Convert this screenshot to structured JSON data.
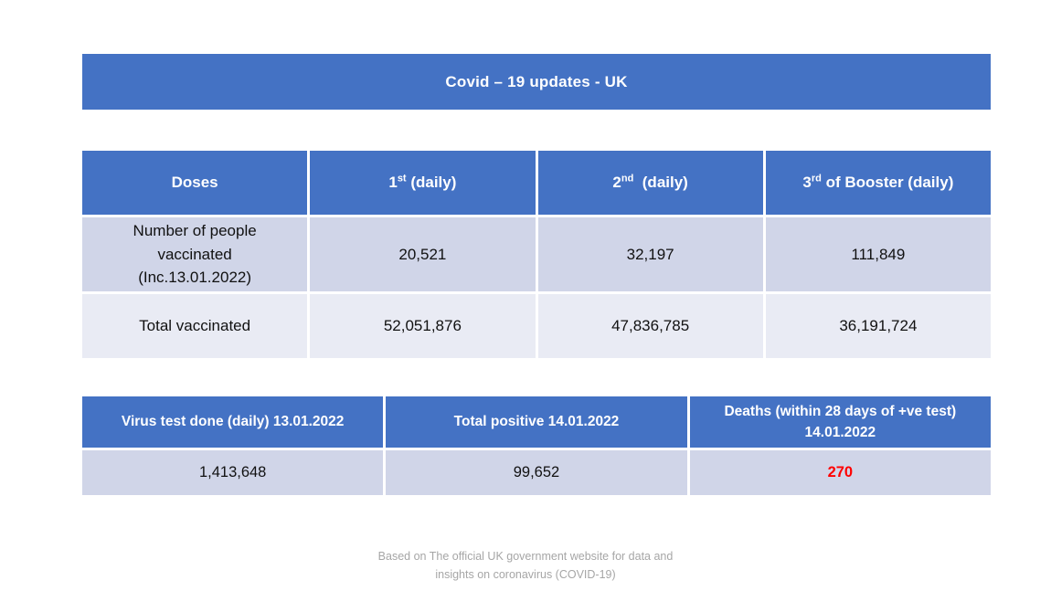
{
  "title": "Covid – 19 updates - UK",
  "colors": {
    "header_blue": "#4472C4",
    "banded_row_dark": "#D0D5E8",
    "banded_row_light": "#E9EBF4",
    "deaths_red": "#FF0000",
    "footer_gray": "#A6A6A6"
  },
  "vaccination_table": {
    "headers": [
      {
        "base": "Doses",
        "sup": "",
        "rest": ""
      },
      {
        "base": "1",
        "sup": "st",
        "rest": " (daily)"
      },
      {
        "base": "2",
        "sup": "nd",
        "rest": "  (daily)"
      },
      {
        "base": "3",
        "sup": "rd",
        "rest": " of Booster (daily)"
      }
    ],
    "rows": [
      {
        "label": "Number of people\nvaccinated\n(Inc.13.01.2022)",
        "first": "20,521",
        "second": "32,197",
        "third": "111,849"
      },
      {
        "label": "Total vaccinated",
        "first": "52,051,876",
        "second": "47,836,785",
        "third": "36,191,724"
      }
    ]
  },
  "daily_stats_table": {
    "headers": {
      "tests": "Virus test done (daily) 13.01.2022",
      "positives": "Total positive 14.01.2022",
      "deaths": "Deaths (within 28 days of +ve test)\n14.01.2022"
    },
    "row": {
      "tests": "1,413,648",
      "positives": "99,652",
      "deaths": "270"
    }
  },
  "footer": "Based on The official UK government website for data and\ninsights on coronavirus (COVID-19)"
}
